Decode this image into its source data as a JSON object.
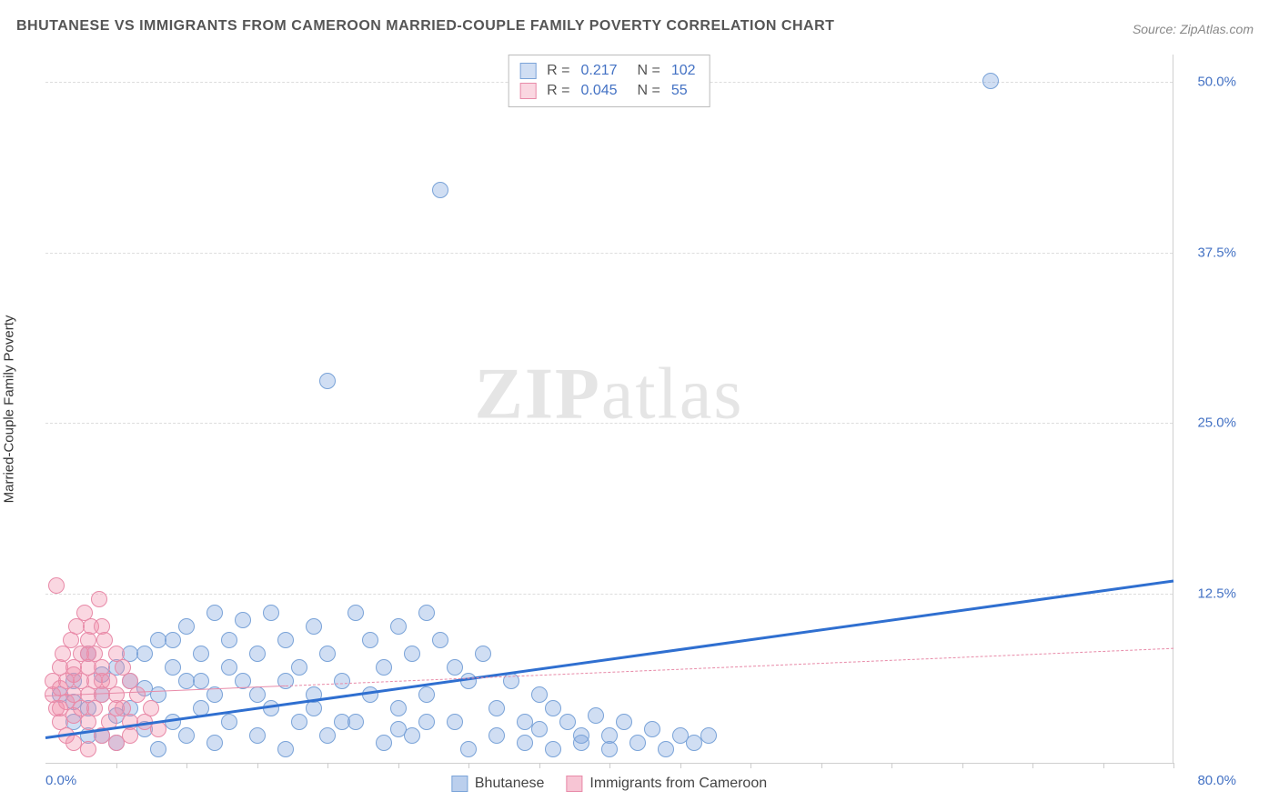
{
  "title": "BHUTANESE VS IMMIGRANTS FROM CAMEROON MARRIED-COUPLE FAMILY POVERTY CORRELATION CHART",
  "source": "Source: ZipAtlas.com",
  "ylabel": "Married-Couple Family Poverty",
  "watermark": {
    "part1": "ZIP",
    "part2": "atlas"
  },
  "chart": {
    "type": "scatter",
    "xlim": [
      0,
      80
    ],
    "ylim": [
      0,
      52
    ],
    "xticks_minor_count": 16,
    "yticks": [
      {
        "value": 12.5,
        "label": "12.5%"
      },
      {
        "value": 25.0,
        "label": "25.0%"
      },
      {
        "value": 37.5,
        "label": "37.5%"
      },
      {
        "value": 50.0,
        "label": "50.0%"
      }
    ],
    "xtick_left": "0.0%",
    "xtick_right": "80.0%",
    "background_color": "#ffffff",
    "grid_color": "#dddddd",
    "marker_radius": 9,
    "marker_stroke_width": 1.5,
    "series": [
      {
        "name": "Bhutanese",
        "fill": "rgba(120,160,220,0.35)",
        "stroke": "#7aa3d8",
        "trend": {
          "x1": 0,
          "y1": 2.0,
          "x2": 80,
          "y2": 13.5,
          "color": "#2f6fd0",
          "width": 3,
          "dash": "solid"
        },
        "stats": {
          "R": "0.217",
          "N": "102"
        },
        "points": [
          [
            1,
            5
          ],
          [
            2,
            6
          ],
          [
            2,
            3
          ],
          [
            3,
            8
          ],
          [
            3,
            4
          ],
          [
            4,
            6.5
          ],
          [
            4,
            2
          ],
          [
            5,
            7
          ],
          [
            5,
            3.5
          ],
          [
            5,
            1.5
          ],
          [
            6,
            6
          ],
          [
            6,
            4
          ],
          [
            7,
            8
          ],
          [
            7,
            2.5
          ],
          [
            8,
            9
          ],
          [
            8,
            5
          ],
          [
            8,
            1
          ],
          [
            9,
            7
          ],
          [
            9,
            3
          ],
          [
            10,
            10
          ],
          [
            10,
            6
          ],
          [
            10,
            2
          ],
          [
            11,
            8
          ],
          [
            11,
            4
          ],
          [
            12,
            11
          ],
          [
            12,
            5
          ],
          [
            12,
            1.5
          ],
          [
            13,
            9
          ],
          [
            13,
            3
          ],
          [
            14,
            10.5
          ],
          [
            14,
            6
          ],
          [
            15,
            8
          ],
          [
            15,
            2
          ],
          [
            16,
            11
          ],
          [
            16,
            4
          ],
          [
            17,
            9
          ],
          [
            17,
            1
          ],
          [
            18,
            7
          ],
          [
            18,
            3
          ],
          [
            19,
            10
          ],
          [
            19,
            5
          ],
          [
            20,
            8
          ],
          [
            20,
            2
          ],
          [
            20,
            28
          ],
          [
            21,
            6
          ],
          [
            22,
            11
          ],
          [
            22,
            3
          ],
          [
            23,
            9
          ],
          [
            24,
            7
          ],
          [
            24,
            1.5
          ],
          [
            25,
            10
          ],
          [
            25,
            4
          ],
          [
            26,
            8
          ],
          [
            26,
            2
          ],
          [
            27,
            11
          ],
          [
            27,
            5
          ],
          [
            28,
            9
          ],
          [
            28,
            42
          ],
          [
            29,
            7
          ],
          [
            29,
            3
          ],
          [
            30,
            6
          ],
          [
            30,
            1
          ],
          [
            31,
            8
          ],
          [
            32,
            4
          ],
          [
            32,
            2
          ],
          [
            33,
            6
          ],
          [
            34,
            3
          ],
          [
            34,
            1.5
          ],
          [
            35,
            5
          ],
          [
            35,
            2.5
          ],
          [
            36,
            4
          ],
          [
            36,
            1
          ],
          [
            37,
            3
          ],
          [
            38,
            2
          ],
          [
            38,
            1.5
          ],
          [
            39,
            3.5
          ],
          [
            40,
            2
          ],
          [
            40,
            1
          ],
          [
            41,
            3
          ],
          [
            42,
            1.5
          ],
          [
            43,
            2.5
          ],
          [
            44,
            1
          ],
          [
            45,
            2
          ],
          [
            46,
            1.5
          ],
          [
            47,
            2
          ],
          [
            2,
            4.5
          ],
          [
            3,
            2
          ],
          [
            4,
            5
          ],
          [
            6,
            8
          ],
          [
            7,
            5.5
          ],
          [
            9,
            9
          ],
          [
            11,
            6
          ],
          [
            13,
            7
          ],
          [
            15,
            5
          ],
          [
            17,
            6
          ],
          [
            19,
            4
          ],
          [
            21,
            3
          ],
          [
            23,
            5
          ],
          [
            25,
            2.5
          ],
          [
            27,
            3
          ],
          [
            67,
            50
          ]
        ]
      },
      {
        "name": "Immigrants from Cameroon",
        "fill": "rgba(240,140,170,0.35)",
        "stroke": "#e88aa8",
        "trend": {
          "x1": 0,
          "y1": 5.0,
          "x2": 80,
          "y2": 8.5,
          "color": "#e88aa8",
          "width": 1.5,
          "dash": "dashed"
        },
        "trend_solid_until": 17,
        "stats": {
          "R": "0.045",
          "N": "55"
        },
        "points": [
          [
            0.5,
            5
          ],
          [
            0.5,
            6
          ],
          [
            0.8,
            4
          ],
          [
            1,
            7
          ],
          [
            1,
            5.5
          ],
          [
            1,
            3
          ],
          [
            1.2,
            8
          ],
          [
            1.5,
            6
          ],
          [
            1.5,
            4.5
          ],
          [
            1.5,
            2
          ],
          [
            1.8,
            9
          ],
          [
            2,
            7
          ],
          [
            2,
            5
          ],
          [
            2,
            3.5
          ],
          [
            2,
            1.5
          ],
          [
            2.2,
            10
          ],
          [
            2.5,
            8
          ],
          [
            2.5,
            6
          ],
          [
            2.5,
            4
          ],
          [
            2.8,
            11
          ],
          [
            3,
            9
          ],
          [
            3,
            7
          ],
          [
            3,
            5
          ],
          [
            3,
            3
          ],
          [
            3,
            1
          ],
          [
            3.2,
            10
          ],
          [
            3.5,
            8
          ],
          [
            3.5,
            6
          ],
          [
            3.5,
            4
          ],
          [
            3.8,
            12
          ],
          [
            4,
            10
          ],
          [
            4,
            7
          ],
          [
            4,
            5
          ],
          [
            4,
            2
          ],
          [
            4.2,
            9
          ],
          [
            4.5,
            6
          ],
          [
            4.5,
            3
          ],
          [
            5,
            8
          ],
          [
            5,
            5
          ],
          [
            5,
            1.5
          ],
          [
            5.5,
            7
          ],
          [
            5.5,
            4
          ],
          [
            6,
            6
          ],
          [
            6,
            2
          ],
          [
            6.5,
            5
          ],
          [
            7,
            3
          ],
          [
            7.5,
            4
          ],
          [
            8,
            2.5
          ],
          [
            1,
            4
          ],
          [
            2,
            6.5
          ],
          [
            3,
            8
          ],
          [
            4,
            6
          ],
          [
            5,
            4
          ],
          [
            6,
            3
          ],
          [
            0.8,
            13
          ]
        ]
      }
    ]
  },
  "legend_bottom": [
    {
      "label": "Bhutanese",
      "fill": "rgba(120,160,220,0.5)",
      "stroke": "#7aa3d8"
    },
    {
      "label": "Immigrants from Cameroon",
      "fill": "rgba(240,140,170,0.5)",
      "stroke": "#e88aa8"
    }
  ]
}
